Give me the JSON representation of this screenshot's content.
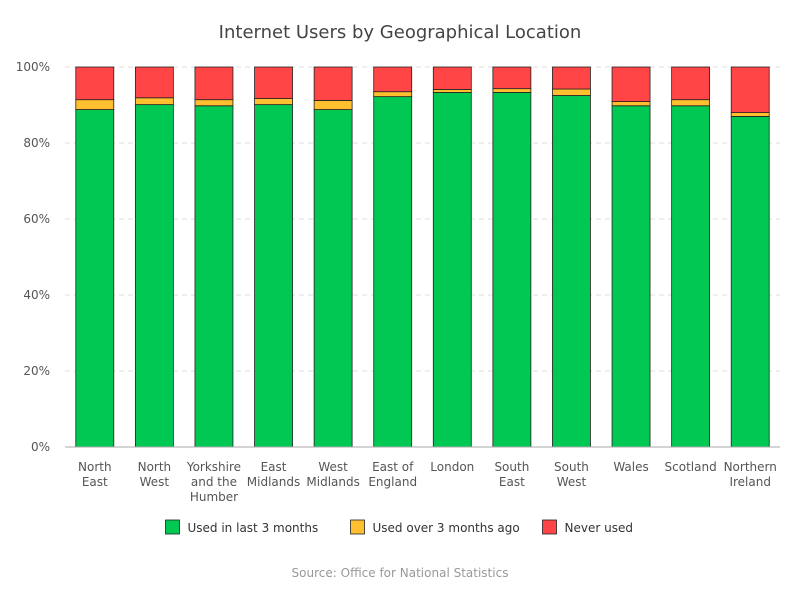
{
  "chart_data": {
    "type": "bar",
    "stacked": true,
    "normalized": true,
    "title": "Internet Users by Geographical Location",
    "xlabel": "",
    "ylabel": "",
    "ylim": [
      0,
      100
    ],
    "y_ticks": [
      "0%",
      "20%",
      "40%",
      "60%",
      "80%",
      "100%"
    ],
    "grid": true,
    "legend_position": "bottom",
    "categories": [
      [
        "North",
        "East"
      ],
      [
        "North",
        "West"
      ],
      [
        "Yorkshire",
        "and the",
        "Humber"
      ],
      [
        "East",
        "Midlands"
      ],
      [
        "West",
        "Midlands"
      ],
      [
        "East of",
        "England"
      ],
      [
        "London"
      ],
      [
        "South",
        "East"
      ],
      [
        "South",
        "West"
      ],
      [
        "Wales"
      ],
      [
        "Scotland"
      ],
      [
        "Northern",
        "Ireland"
      ]
    ],
    "series": [
      {
        "name": "Used in last 3 months",
        "color": "#00c853",
        "values": [
          88.8,
          90.1,
          89.8,
          90.1,
          88.8,
          92.2,
          93.3,
          93.3,
          92.5,
          89.8,
          89.8,
          87.0
        ]
      },
      {
        "name": "Used over 3 months ago",
        "color": "#ffbf2f",
        "values": [
          2.6,
          1.8,
          1.6,
          1.6,
          2.4,
          1.3,
          0.8,
          1.0,
          1.7,
          1.1,
          1.6,
          1.0
        ]
      },
      {
        "name": "Never used",
        "color": "#ff4545",
        "values": [
          8.6,
          8.1,
          8.6,
          8.3,
          8.8,
          6.5,
          5.9,
          5.7,
          5.8,
          9.1,
          8.6,
          12.0
        ]
      }
    ],
    "source": "Source: Office for National Statistics"
  }
}
